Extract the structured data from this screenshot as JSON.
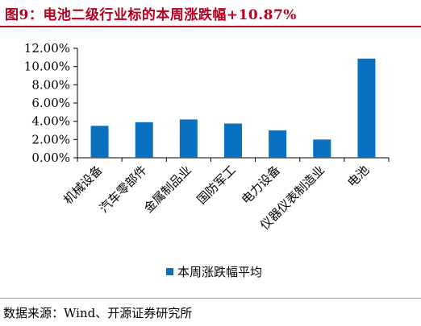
{
  "title": "图9：电池二级行业标的本周涨跌幅+10.87%",
  "source": "数据来源：Wind、开源证券研究所",
  "colors": {
    "bar": "#0A70C0",
    "title": "#B5001F",
    "axis": "#000000"
  },
  "chart_data": {
    "type": "bar",
    "categories": [
      "机械设备",
      "汽车零部件",
      "金属制品业",
      "国防军工",
      "电力设备",
      "仪器仪表制造业",
      "电池"
    ],
    "series": [
      {
        "name": "本周涨跌幅平均",
        "values": [
          3.5,
          3.9,
          4.2,
          3.75,
          3.0,
          2.0,
          10.87
        ]
      }
    ],
    "yticks": [
      "0.00%",
      "2.00%",
      "4.00%",
      "6.00%",
      "8.00%",
      "10.00%",
      "12.00%"
    ],
    "ylim": [
      0,
      12
    ],
    "unit": "%",
    "grid": false,
    "legend_position": "bottom"
  }
}
